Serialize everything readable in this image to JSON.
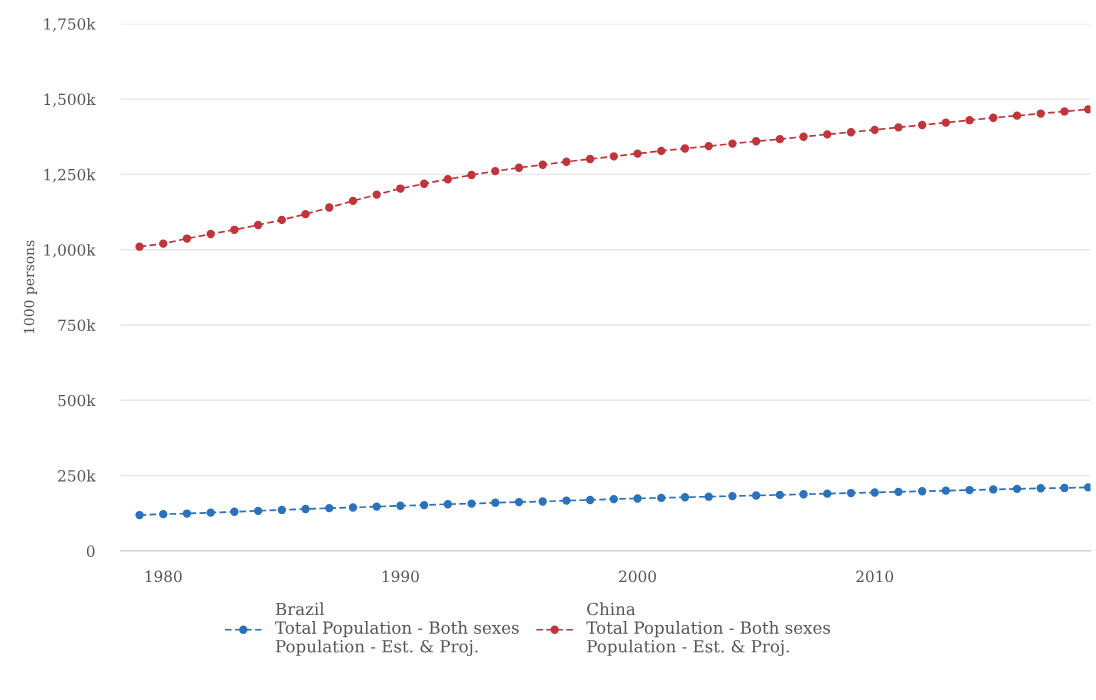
{
  "chart_data": {
    "type": "line",
    "ylabel": "1000 persons",
    "x": [
      1979,
      1980,
      1981,
      1982,
      1983,
      1984,
      1985,
      1986,
      1987,
      1988,
      1989,
      1990,
      1991,
      1992,
      1993,
      1994,
      1995,
      1996,
      1997,
      1998,
      1999,
      2000,
      2001,
      2002,
      2003,
      2004,
      2005,
      2006,
      2007,
      2008,
      2009,
      2010,
      2011,
      2012,
      2013,
      2014,
      2015,
      2016,
      2017,
      2018,
      2019
    ],
    "series": [
      {
        "name": "Brazil\nTotal Population - Both sexes\nPopulation - Est. & Proj.",
        "color": "#2a72bb",
        "values": [
          119000,
          122000,
          124000,
          127000,
          130000,
          133000,
          136000,
          139000,
          142000,
          144000,
          147000,
          150000,
          152000,
          155000,
          157000,
          160000,
          162000,
          164000,
          167000,
          169000,
          172000,
          174000,
          176000,
          178000,
          180000,
          182000,
          184000,
          186000,
          188000,
          190000,
          192000,
          194000,
          196000,
          198000,
          200000,
          202000,
          204000,
          206000,
          208000,
          209000,
          211000
        ]
      },
      {
        "name": "China\nTotal Population - Both sexes\nPopulation - Est. & Proj.",
        "color": "#c0353a",
        "values": [
          1010000,
          1020000,
          1037000,
          1052000,
          1066000,
          1082000,
          1099000,
          1118000,
          1140000,
          1162000,
          1183000,
          1203000,
          1219000,
          1234000,
          1248000,
          1261000,
          1272000,
          1282000,
          1292000,
          1301000,
          1310000,
          1319000,
          1328000,
          1336000,
          1344000,
          1352000,
          1360000,
          1367000,
          1375000,
          1383000,
          1390000,
          1398000,
          1406000,
          1414000,
          1422000,
          1430000,
          1438000,
          1445000,
          1452000,
          1459000,
          1466000
        ]
      }
    ],
    "xlim": [
      1978.2,
      2019.1
    ],
    "xticks": [
      1980,
      1990,
      2000,
      2010
    ],
    "ylim": [
      0,
      1750000
    ],
    "yticks": [
      {
        "value": 0,
        "label": "0"
      },
      {
        "value": 250000,
        "label": "250k"
      },
      {
        "value": 500000,
        "label": "500k"
      },
      {
        "value": 750000,
        "label": "750k"
      },
      {
        "value": 1000000,
        "label": "1,000k"
      },
      {
        "value": 1250000,
        "label": "1,250k"
      },
      {
        "value": 1500000,
        "label": "1,500k"
      },
      {
        "value": 1750000,
        "label": "1,750k"
      }
    ],
    "grid": "y",
    "legend": "bottom",
    "marker": "circle",
    "line_style": "dashed"
  }
}
